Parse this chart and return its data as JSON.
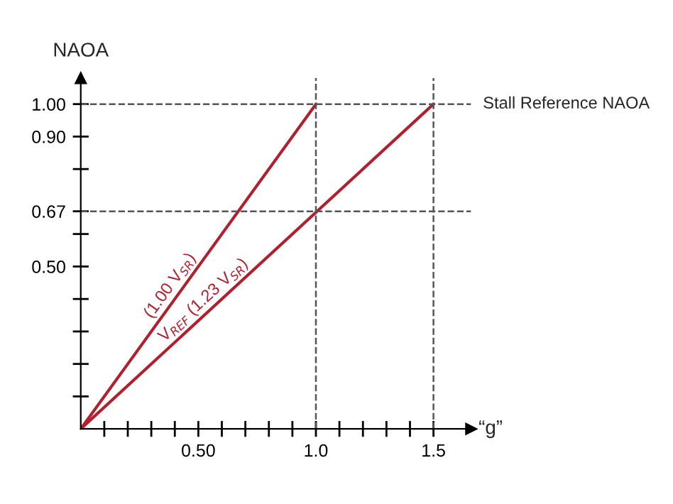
{
  "chart_data": {
    "type": "line",
    "xlabel": "“g”",
    "ylabel": "NAOA",
    "series": [
      {
        "x": [
          0,
          1.0
        ],
        "values": [
          0,
          1.0
        ],
        "color": "#b0202e"
      },
      {
        "x": [
          0,
          1.5
        ],
        "values": [
          0,
          1.0
        ],
        "color": "#b0202e"
      }
    ],
    "xlim": [
      0,
      1.66
    ],
    "ylim": [
      0,
      1.08
    ],
    "xticks": [
      {
        "value": 0.1,
        "label": null
      },
      {
        "value": 0.2,
        "label": null
      },
      {
        "value": 0.3,
        "label": null
      },
      {
        "value": 0.4,
        "label": null
      },
      {
        "value": 0.5,
        "label": "0.50"
      },
      {
        "value": 0.6,
        "label": null
      },
      {
        "value": 0.7,
        "label": null
      },
      {
        "value": 0.8,
        "label": null
      },
      {
        "value": 0.9,
        "label": null
      },
      {
        "value": 1.0,
        "label": "1.0"
      },
      {
        "value": 1.1,
        "label": null
      },
      {
        "value": 1.2,
        "label": null
      },
      {
        "value": 1.3,
        "label": null
      },
      {
        "value": 1.4,
        "label": null
      },
      {
        "value": 1.5,
        "label": "1.5"
      }
    ],
    "yticks": [
      {
        "value": 0.1,
        "label": null
      },
      {
        "value": 0.2,
        "label": null
      },
      {
        "value": 0.3,
        "label": null
      },
      {
        "value": 0.4,
        "label": null
      },
      {
        "value": 0.5,
        "label": "0.50"
      },
      {
        "value": 0.6,
        "label": null
      },
      {
        "value": 0.67,
        "label": "0.67"
      },
      {
        "value": 0.8,
        "label": null
      },
      {
        "value": 0.9,
        "label": "0.90"
      },
      {
        "value": 1.0,
        "label": "1.00"
      }
    ],
    "ref_lines": [
      {
        "axis": "y",
        "value": 1.0,
        "label": "Stall Reference NAOA",
        "color": "#555555",
        "line_style": "dashed"
      },
      {
        "axis": "y",
        "value": 0.67,
        "color": "#555555",
        "line_style": "dashed"
      },
      {
        "axis": "x",
        "value": 1.0,
        "color": "#555555",
        "line_style": "dashed"
      },
      {
        "axis": "x",
        "value": 1.5,
        "color": "#555555",
        "line_style": "dashed"
      }
    ],
    "annotations": [
      "(1.00 V$_{SR}$)",
      "V$_{REF}$ (1.23 V$_{SR}$)"
    ],
    "grid": false,
    "marker": "none",
    "line_style": "solid"
  }
}
